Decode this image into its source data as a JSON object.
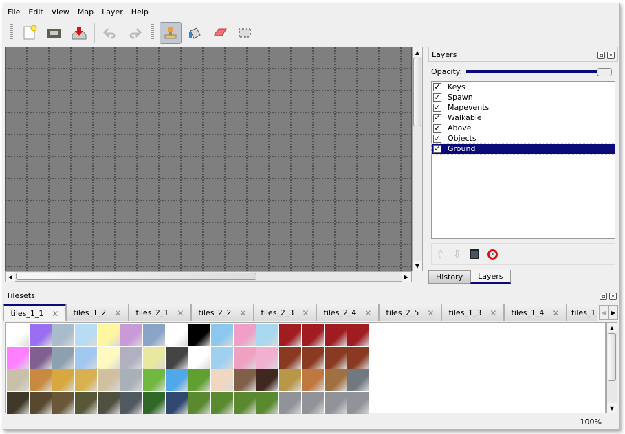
{
  "menu": [
    "File",
    "Edit",
    "View",
    "Map",
    "Layer",
    "Help"
  ],
  "toolbar": {
    "icons": [
      "new-file-icon",
      "open-icon",
      "save-icon",
      "undo-icon",
      "redo-icon",
      "stamp-brush-icon",
      "bucket-fill-icon",
      "eraser-icon",
      "rectangle-select-icon"
    ],
    "active": "stamp-brush-icon"
  },
  "layers_panel": {
    "title": "Layers",
    "opacity_label": "Opacity:",
    "opacity": 100,
    "layers": [
      {
        "name": "Keys",
        "visible": true
      },
      {
        "name": "Spawn",
        "visible": true
      },
      {
        "name": "Mapevents",
        "visible": true
      },
      {
        "name": "Walkable",
        "visible": true
      },
      {
        "name": "Above",
        "visible": true
      },
      {
        "name": "Objects",
        "visible": true
      },
      {
        "name": "Ground",
        "visible": true,
        "selected": true
      }
    ],
    "tabs": [
      "History",
      "Layers"
    ],
    "active_tab": "Layers"
  },
  "tilesets_panel": {
    "title": "Tilesets",
    "tabs": [
      "tiles_1_1",
      "tiles_1_2",
      "tiles_2_1",
      "tiles_2_2",
      "tiles_2_3",
      "tiles_2_4",
      "tiles_2_5",
      "tiles_1_3",
      "tiles_1_4",
      "tiles_1_"
    ],
    "active_tab": "tiles_1_1"
  },
  "status": {
    "zoom": "100%"
  },
  "colors": {
    "selection": "#0a0a78",
    "canvas": "#7f7f7f"
  }
}
